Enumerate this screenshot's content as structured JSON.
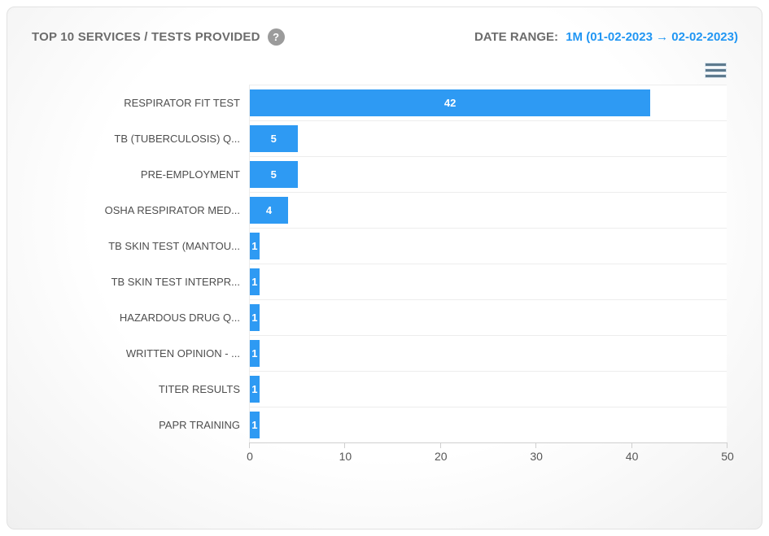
{
  "header": {
    "title": "TOP 10 SERVICES / TESTS PROVIDED",
    "help_icon_glyph": "?",
    "date_range_label": "DATE RANGE:",
    "date_range_value": "1M (01-02-2023 → 02-02-2023)"
  },
  "colors": {
    "bar": "#2e9af3",
    "accent_blue": "#2196f3",
    "title_gray": "#6c6c6c",
    "grid_line": "#ededed",
    "axis_line": "#cfcfcf",
    "menu_icon": "#5e7a8e"
  },
  "chart_data": {
    "type": "bar",
    "orientation": "horizontal",
    "title": "TOP 10 SERVICES / TESTS PROVIDED",
    "categories": [
      "RESPIRATOR FIT TEST",
      "TB (TUBERCULOSIS) Q...",
      "PRE-EMPLOYMENT",
      "OSHA RESPIRATOR MED...",
      "TB SKIN TEST (MANTOU...",
      "TB SKIN TEST INTERPR...",
      "HAZARDOUS DRUG Q...",
      "WRITTEN OPINION - ...",
      "TITER RESULTS",
      "PAPR TRAINING"
    ],
    "values": [
      42,
      5,
      5,
      4,
      1,
      1,
      1,
      1,
      1,
      1
    ],
    "xlim": [
      0,
      50
    ],
    "x_ticks": [
      0,
      10,
      20,
      30,
      40,
      50
    ],
    "xlabel": "",
    "ylabel": "",
    "legend": "none",
    "grid": "row-separators-horizontal",
    "data_labels": "inside-center-white"
  }
}
